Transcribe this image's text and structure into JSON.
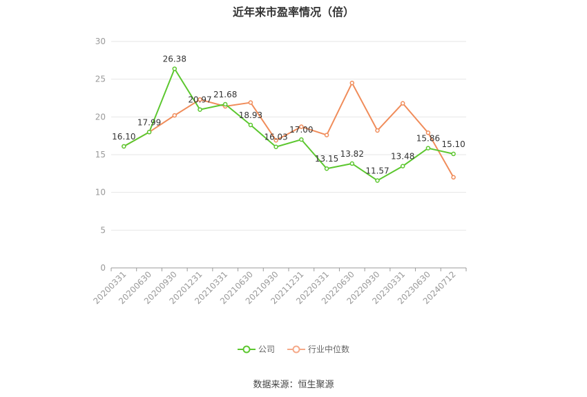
{
  "chart_data": {
    "type": "line",
    "title": "近年来市盈率情况（倍）",
    "categories": [
      "20200331",
      "20200630",
      "20200930",
      "20201231",
      "20210331",
      "20210630",
      "20210930",
      "20211231",
      "20220331",
      "20220630",
      "20220930",
      "20230331",
      "20230630",
      "20240712"
    ],
    "ylim": [
      0,
      30
    ],
    "yticks": [
      0,
      5,
      10,
      15,
      20,
      25,
      30
    ],
    "grid": true,
    "legend_position": "bottom",
    "series": [
      {
        "name": "公司",
        "color": "#5cc72f",
        "values": [
          16.1,
          17.99,
          26.38,
          20.97,
          21.68,
          18.93,
          16.03,
          17.0,
          13.15,
          13.82,
          11.57,
          13.48,
          15.86,
          15.1
        ],
        "labels": [
          "16.10",
          "17.99",
          "26.38",
          "20.97",
          "21.68",
          "18.93",
          "16.03",
          "17.00",
          "13.15",
          "13.82",
          "11.57",
          "13.48",
          "15.86",
          "15.10"
        ]
      },
      {
        "name": "行业中位数",
        "color": "#f08c5a",
        "values": [
          16.1,
          17.99,
          20.2,
          22.3,
          21.4,
          21.9,
          16.9,
          18.7,
          17.6,
          24.5,
          18.2,
          21.8,
          17.9,
          12.0
        ]
      }
    ]
  },
  "footer": {
    "source": "数据来源：恒生聚源"
  }
}
